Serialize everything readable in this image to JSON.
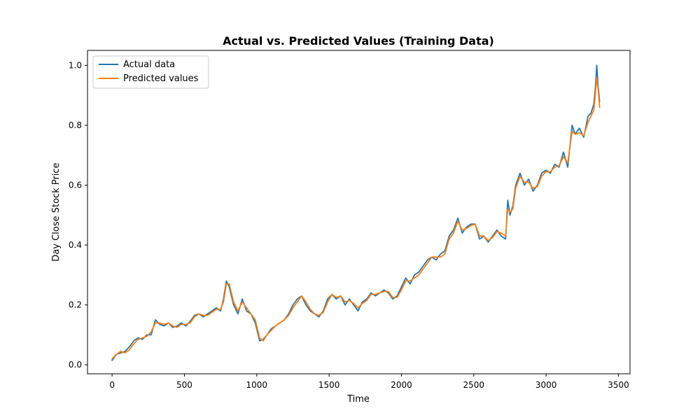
{
  "chart_data": {
    "type": "line",
    "title": "Actual vs. Predicted Values (Training Data)",
    "xlabel": "Time",
    "ylabel": "Day Close Stock Price",
    "xlim": [
      -170,
      3580
    ],
    "ylim": [
      -0.03,
      1.05
    ],
    "xticks": [
      0,
      500,
      1000,
      1500,
      2000,
      2500,
      3000,
      3500
    ],
    "yticks": [
      0.0,
      0.2,
      0.4,
      0.6,
      0.8,
      1.0
    ],
    "grid": false,
    "legend": "top-left",
    "series": [
      {
        "name": "Actual data",
        "color": "#1f77b4",
        "x": [
          0,
          30,
          60,
          90,
          120,
          150,
          180,
          210,
          240,
          270,
          300,
          330,
          360,
          390,
          420,
          450,
          480,
          510,
          540,
          570,
          600,
          630,
          660,
          690,
          720,
          750,
          770,
          790,
          810,
          840,
          870,
          900,
          930,
          960,
          990,
          1020,
          1045,
          1070,
          1100,
          1130,
          1160,
          1190,
          1220,
          1250,
          1280,
          1310,
          1340,
          1370,
          1400,
          1430,
          1460,
          1490,
          1520,
          1550,
          1580,
          1610,
          1640,
          1670,
          1700,
          1730,
          1760,
          1790,
          1820,
          1850,
          1880,
          1910,
          1940,
          1970,
          2000,
          2030,
          2060,
          2090,
          2120,
          2150,
          2180,
          2210,
          2240,
          2270,
          2300,
          2330,
          2360,
          2390,
          2420,
          2450,
          2480,
          2510,
          2540,
          2570,
          2600,
          2630,
          2660,
          2690,
          2720,
          2735,
          2750,
          2770,
          2790,
          2820,
          2850,
          2880,
          2910,
          2940,
          2970,
          3000,
          3030,
          3060,
          3090,
          3120,
          3150,
          3180,
          3200,
          3230,
          3260,
          3290,
          3310,
          3330,
          3340,
          3350,
          3360,
          3370
        ],
        "y": [
          0.015,
          0.035,
          0.04,
          0.045,
          0.06,
          0.08,
          0.09,
          0.085,
          0.1,
          0.1,
          0.15,
          0.135,
          0.13,
          0.14,
          0.125,
          0.13,
          0.14,
          0.13,
          0.145,
          0.165,
          0.17,
          0.16,
          0.17,
          0.18,
          0.19,
          0.18,
          0.22,
          0.28,
          0.26,
          0.2,
          0.17,
          0.22,
          0.18,
          0.17,
          0.14,
          0.08,
          0.085,
          0.1,
          0.12,
          0.13,
          0.14,
          0.15,
          0.17,
          0.2,
          0.22,
          0.23,
          0.2,
          0.18,
          0.17,
          0.16,
          0.18,
          0.22,
          0.235,
          0.22,
          0.23,
          0.2,
          0.22,
          0.2,
          0.18,
          0.21,
          0.22,
          0.24,
          0.23,
          0.24,
          0.25,
          0.24,
          0.22,
          0.23,
          0.26,
          0.29,
          0.27,
          0.3,
          0.31,
          0.33,
          0.35,
          0.36,
          0.35,
          0.37,
          0.38,
          0.43,
          0.45,
          0.49,
          0.44,
          0.46,
          0.47,
          0.47,
          0.42,
          0.43,
          0.41,
          0.43,
          0.45,
          0.43,
          0.42,
          0.55,
          0.5,
          0.53,
          0.6,
          0.64,
          0.6,
          0.62,
          0.58,
          0.6,
          0.64,
          0.65,
          0.64,
          0.67,
          0.66,
          0.71,
          0.66,
          0.8,
          0.77,
          0.79,
          0.76,
          0.83,
          0.84,
          0.87,
          0.92,
          1.0,
          0.93,
          0.88
        ],
        "linewidth": 1.8
      },
      {
        "name": "Predicted values",
        "color": "#ff7f0e",
        "x": [
          0,
          30,
          60,
          90,
          120,
          150,
          180,
          210,
          240,
          270,
          300,
          330,
          360,
          390,
          420,
          450,
          480,
          510,
          540,
          570,
          600,
          630,
          660,
          690,
          720,
          750,
          770,
          790,
          810,
          840,
          870,
          900,
          930,
          960,
          990,
          1020,
          1045,
          1070,
          1100,
          1130,
          1160,
          1190,
          1220,
          1250,
          1280,
          1310,
          1340,
          1370,
          1400,
          1430,
          1460,
          1490,
          1520,
          1550,
          1580,
          1610,
          1640,
          1670,
          1700,
          1730,
          1760,
          1790,
          1820,
          1850,
          1880,
          1910,
          1940,
          1970,
          2000,
          2030,
          2060,
          2090,
          2120,
          2150,
          2180,
          2210,
          2240,
          2270,
          2300,
          2330,
          2360,
          2390,
          2420,
          2450,
          2480,
          2510,
          2540,
          2570,
          2600,
          2630,
          2660,
          2690,
          2720,
          2735,
          2750,
          2770,
          2790,
          2820,
          2850,
          2880,
          2910,
          2940,
          2970,
          3000,
          3030,
          3060,
          3090,
          3120,
          3150,
          3180,
          3200,
          3230,
          3260,
          3290,
          3310,
          3330,
          3340,
          3350,
          3360,
          3370
        ],
        "y": [
          0.02,
          0.035,
          0.045,
          0.04,
          0.05,
          0.07,
          0.085,
          0.09,
          0.095,
          0.11,
          0.14,
          0.14,
          0.135,
          0.14,
          0.13,
          0.125,
          0.135,
          0.135,
          0.14,
          0.16,
          0.17,
          0.165,
          0.165,
          0.175,
          0.185,
          0.185,
          0.21,
          0.27,
          0.27,
          0.21,
          0.18,
          0.21,
          0.19,
          0.17,
          0.15,
          0.09,
          0.08,
          0.1,
          0.115,
          0.13,
          0.14,
          0.15,
          0.165,
          0.19,
          0.21,
          0.23,
          0.21,
          0.185,
          0.17,
          0.165,
          0.175,
          0.21,
          0.235,
          0.225,
          0.23,
          0.21,
          0.215,
          0.205,
          0.19,
          0.205,
          0.215,
          0.235,
          0.235,
          0.24,
          0.245,
          0.245,
          0.225,
          0.225,
          0.25,
          0.28,
          0.28,
          0.29,
          0.3,
          0.32,
          0.34,
          0.36,
          0.36,
          0.36,
          0.37,
          0.42,
          0.44,
          0.48,
          0.45,
          0.455,
          0.465,
          0.47,
          0.43,
          0.43,
          0.415,
          0.425,
          0.445,
          0.44,
          0.43,
          0.52,
          0.51,
          0.52,
          0.59,
          0.63,
          0.61,
          0.61,
          0.59,
          0.595,
          0.63,
          0.645,
          0.645,
          0.66,
          0.665,
          0.695,
          0.675,
          0.78,
          0.77,
          0.775,
          0.765,
          0.81,
          0.83,
          0.85,
          0.9,
          0.96,
          0.92,
          0.86
        ],
        "linewidth": 1.8
      }
    ]
  }
}
